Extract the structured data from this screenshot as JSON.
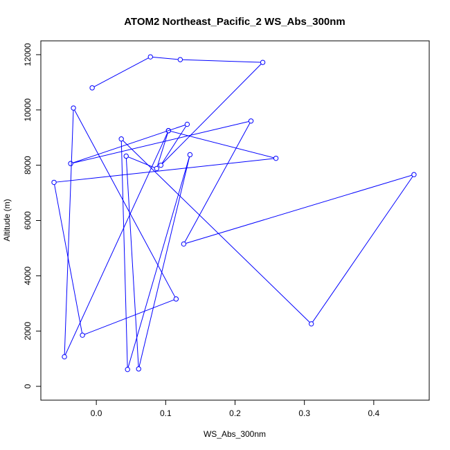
{
  "chart_data": {
    "type": "line",
    "title": "ATOM2 Northeast_Pacific_2 WS_Abs_300nm",
    "xlabel": "WS_Abs_300nm",
    "ylabel": "Altitude (m)",
    "xlim": [
      -0.08,
      0.48
    ],
    "ylim": [
      -500,
      12500
    ],
    "xticks": [
      0.0,
      0.1,
      0.2,
      0.3,
      0.4
    ],
    "xtick_labels": [
      "0.0",
      "0.1",
      "0.2",
      "0.3",
      "0.4"
    ],
    "yticks": [
      0,
      2000,
      4000,
      6000,
      8000,
      10000,
      12000
    ],
    "ytick_labels": [
      "0",
      "2000",
      "4000",
      "6000",
      "8000",
      "10000",
      "12000"
    ],
    "grid": false,
    "line_color": "#0000ff",
    "marker": "open-circle",
    "points": [
      {
        "x": -0.006,
        "y": 10800
      },
      {
        "x": 0.078,
        "y": 11920
      },
      {
        "x": 0.121,
        "y": 11820
      },
      {
        "x": 0.24,
        "y": 11720
      },
      {
        "x": 0.093,
        "y": 8000
      },
      {
        "x": 0.131,
        "y": 9480
      },
      {
        "x": -0.037,
        "y": 8060
      },
      {
        "x": 0.223,
        "y": 9600
      },
      {
        "x": 0.126,
        "y": 5150
      },
      {
        "x": 0.458,
        "y": 7660
      },
      {
        "x": 0.31,
        "y": 2260
      },
      {
        "x": 0.036,
        "y": 8950
      },
      {
        "x": 0.045,
        "y": 610
      },
      {
        "x": 0.135,
        "y": 8380
      },
      {
        "x": 0.061,
        "y": 630
      },
      {
        "x": 0.043,
        "y": 8330
      },
      {
        "x": 0.087,
        "y": 7880
      },
      {
        "x": 0.104,
        "y": 9250
      },
      {
        "x": -0.046,
        "y": 1070
      },
      {
        "x": -0.033,
        "y": 10070
      },
      {
        "x": 0.115,
        "y": 3160
      },
      {
        "x": -0.02,
        "y": 1850
      },
      {
        "x": -0.061,
        "y": 7380
      },
      {
        "x": 0.259,
        "y": 8250
      },
      {
        "x": 0.104,
        "y": 9250
      }
    ]
  }
}
